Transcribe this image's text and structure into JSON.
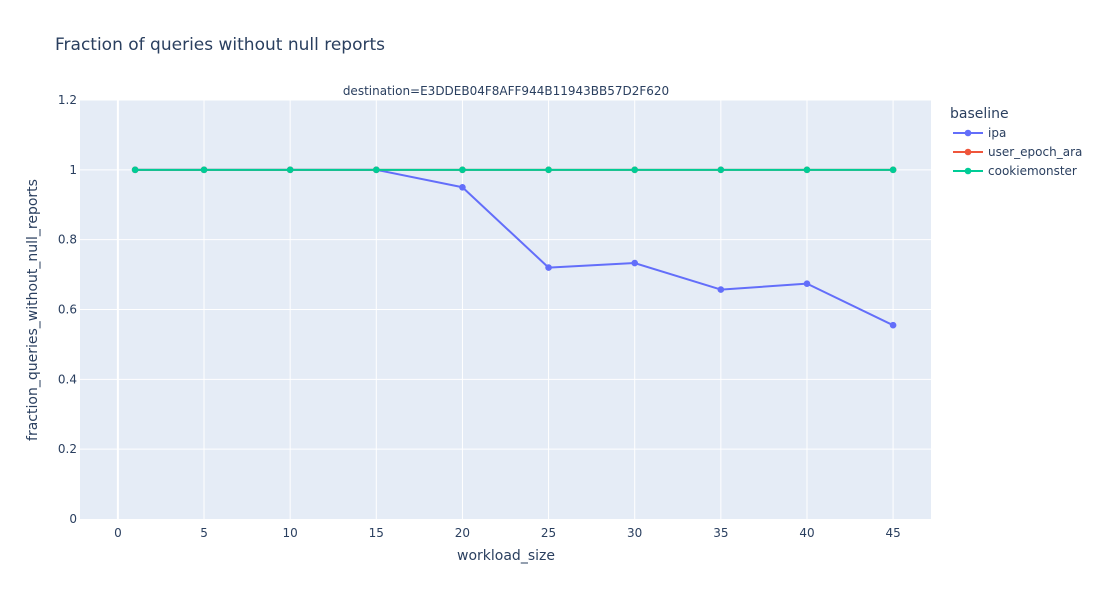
{
  "chart_data": {
    "type": "line",
    "title": "Fraction of queries without null reports",
    "facet_label": "destination=E3DDEB04F8AFF944B11943BB57D2F620",
    "xlabel": "workload_size",
    "ylabel": "fraction_queries_without_null_reports",
    "xlim": [
      -2.2,
      47.2
    ],
    "ylim": [
      0,
      1.2
    ],
    "x_ticks": [
      0,
      5,
      10,
      15,
      20,
      25,
      30,
      35,
      40,
      45
    ],
    "y_ticks": [
      0,
      0.2,
      0.4,
      0.6,
      0.8,
      1,
      1.2
    ],
    "x_tick_labels": [
      "0",
      "5",
      "10",
      "15",
      "20",
      "25",
      "30",
      "35",
      "40",
      "45"
    ],
    "y_tick_labels": [
      "0",
      "0.2",
      "0.4",
      "0.6",
      "0.8",
      "1",
      "1.2"
    ],
    "legend_title": "baseline",
    "legend_position": "right",
    "grid": true,
    "series": [
      {
        "name": "ipa",
        "color": "#636efa",
        "x": [
          1,
          5,
          10,
          15,
          20,
          25,
          30,
          35,
          40,
          45
        ],
        "y": [
          1,
          1,
          1,
          1,
          0.95,
          0.72,
          0.733,
          0.657,
          0.674,
          0.555
        ]
      },
      {
        "name": "user_epoch_ara",
        "color": "#ef553b",
        "x": [
          1,
          5,
          10,
          15,
          20,
          25,
          30,
          35,
          40,
          45
        ],
        "y": [
          1,
          1,
          1,
          1,
          1,
          1,
          1,
          1,
          1,
          1
        ]
      },
      {
        "name": "cookiemonster",
        "color": "#00cc96",
        "x": [
          1,
          5,
          10,
          15,
          20,
          25,
          30,
          35,
          40,
          45
        ],
        "y": [
          1,
          1,
          1,
          1,
          1,
          1,
          1,
          1,
          1,
          1
        ]
      }
    ]
  }
}
